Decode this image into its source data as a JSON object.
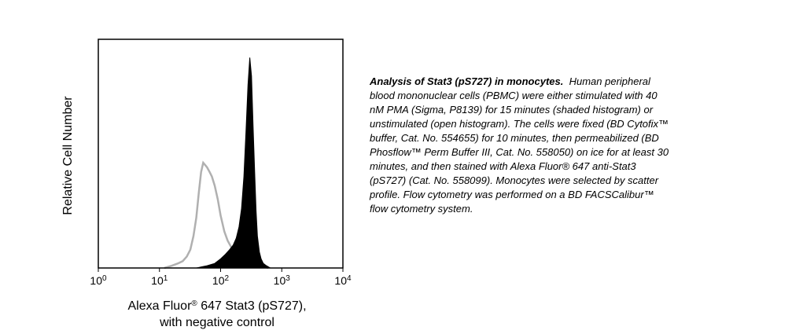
{
  "chart_data": {
    "type": "area",
    "title": "",
    "ylabel": "Relative Cell Number",
    "xlabel_line1": "Alexa Fluor",
    "xlabel_reg": "®",
    "xlabel_line1_rest": " 647 Stat3 (pS727),",
    "xlabel_line2": "with negative control",
    "x_scale": "log",
    "xlim": [
      1,
      10000
    ],
    "ylim": [
      0,
      100
    ],
    "grid": false,
    "ticks": [
      {
        "base": "10",
        "exp": "0",
        "value": 1
      },
      {
        "base": "10",
        "exp": "1",
        "value": 10
      },
      {
        "base": "10",
        "exp": "2",
        "value": 100
      },
      {
        "base": "10",
        "exp": "3",
        "value": 1000
      },
      {
        "base": "10",
        "exp": "4",
        "value": 10000
      }
    ],
    "series": [
      {
        "style": "shaded",
        "color": "#000000",
        "x": [
          40,
          60,
          80,
          100,
          120,
          140,
          160,
          180,
          200,
          220,
          240,
          260,
          280,
          300,
          320,
          340,
          360,
          380,
          400,
          430,
          460,
          500,
          560,
          650
        ],
        "y": [
          0,
          1,
          2,
          4,
          6,
          8,
          10,
          13,
          18,
          26,
          40,
          60,
          80,
          92,
          84,
          62,
          42,
          25,
          14,
          7,
          4,
          2,
          1,
          0
        ]
      },
      {
        "style": "open",
        "color": "#b0b0b0",
        "x": [
          12,
          16,
          20,
          24,
          28,
          32,
          36,
          40,
          44,
          48,
          52,
          56,
          60,
          66,
          72,
          80,
          90,
          100,
          115,
          130,
          150,
          180,
          220,
          280,
          350,
          450,
          600
        ],
        "y": [
          0,
          1,
          2,
          3,
          5,
          8,
          14,
          22,
          33,
          42,
          46,
          45,
          44,
          42,
          40,
          36,
          30,
          23,
          16,
          12,
          9,
          6,
          5,
          4,
          3,
          1,
          0
        ]
      }
    ]
  },
  "caption": {
    "lead": "Analysis of Stat3 (pS727) in monocytes.",
    "body": "Human peripheral blood mononuclear cells (PBMC) were either stimulated with 40 nM PMA (Sigma, P8139) for 15 minutes (shaded histogram) or unstimulated (open histogram).  The cells were fixed (BD Cytofix™ buffer, Cat. No. 554655) for 10 minutes, then permeabilized (BD Phosflow™ Perm Buffer III, Cat. No. 558050) on ice for at least 30 minutes, and then stained with Alexa Fluor® 647 anti-Stat3 (pS727) (Cat. No. 558099).  Monocytes were selected by scatter profile.  Flow cytometry was performed on a BD FACSCalibur™ flow cytometry system."
  }
}
